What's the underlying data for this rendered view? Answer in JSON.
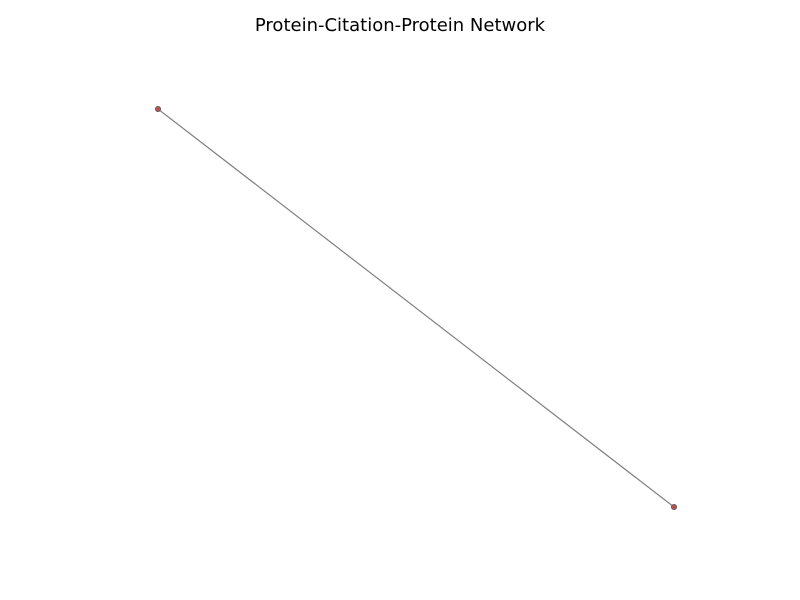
{
  "title": "Protein-Citation-Protein Network",
  "network": {
    "nodes": [
      {
        "id": "protein-a",
        "color": "#c0504d"
      },
      {
        "id": "protein-b",
        "color": "#c0504d"
      }
    ],
    "edges": [
      {
        "source": "protein-a",
        "target": "protein-b",
        "color": "#808080"
      }
    ]
  },
  "colors": {
    "node_fill": "#c0504d",
    "node_stroke": "#555555",
    "edge": "#808080",
    "background": "#ffffff"
  }
}
